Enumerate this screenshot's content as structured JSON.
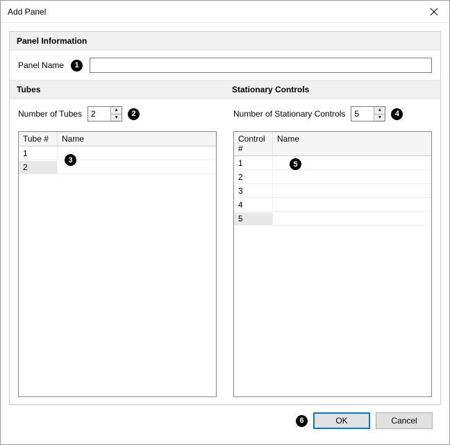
{
  "window": {
    "title": "Add Panel"
  },
  "panelInfo": {
    "header": "Panel Information",
    "nameLabel": "Panel Name",
    "nameValue": ""
  },
  "tubes": {
    "header": "Tubes",
    "countLabel": "Number of Tubes",
    "countValue": "2",
    "columns": {
      "num": "Tube #",
      "name": "Name"
    },
    "rows": [
      {
        "num": "1",
        "name": "",
        "selected": false
      },
      {
        "num": "2",
        "name": "",
        "selected": true
      }
    ]
  },
  "controls": {
    "header": "Stationary Controls",
    "countLabel": "Number of Stationary Controls",
    "countValue": "5",
    "columns": {
      "num": "Control #",
      "name": "Name"
    },
    "rows": [
      {
        "num": "1",
        "name": "",
        "selected": false
      },
      {
        "num": "2",
        "name": "",
        "selected": false
      },
      {
        "num": "3",
        "name": "",
        "selected": false
      },
      {
        "num": "4",
        "name": "",
        "selected": false
      },
      {
        "num": "5",
        "name": "",
        "selected": true
      }
    ]
  },
  "callouts": {
    "c1": "1",
    "c2": "2",
    "c3": "3",
    "c4": "4",
    "c5": "5",
    "c6": "6"
  },
  "buttons": {
    "ok": "OK",
    "cancel": "Cancel"
  },
  "colors": {
    "window_border": "#999999",
    "section_bg": "#f0f0f0",
    "grid_border": "#888888",
    "input_border": "#7a7a7a",
    "btn_bg": "#e1e1e1",
    "primary_border": "#0078d7",
    "callout_bg": "#000000"
  }
}
